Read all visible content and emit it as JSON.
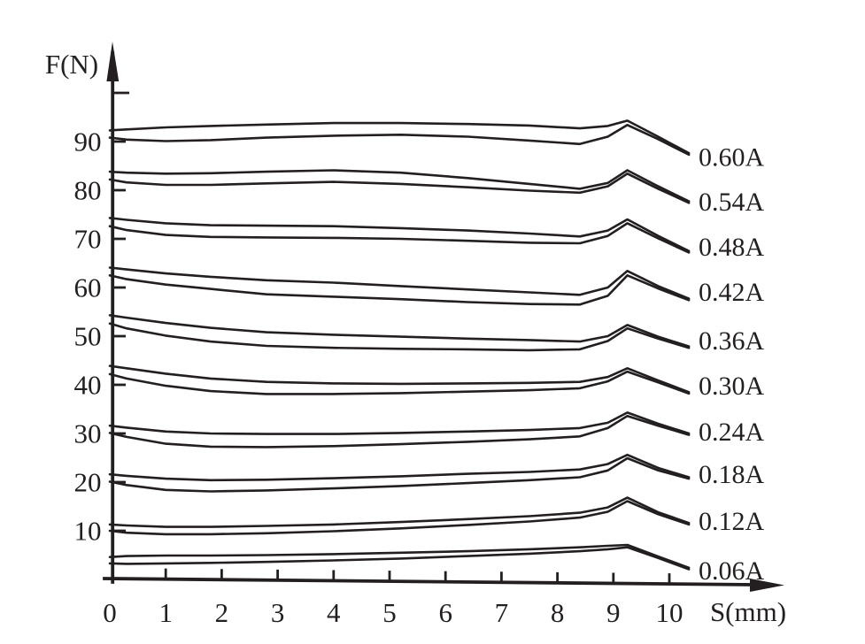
{
  "figure": {
    "background": "#ffffff",
    "ink_color": "#231f20"
  },
  "chart_data": {
    "type": "line",
    "title": "",
    "xlabel": "S(mm)",
    "ylabel": "F(N)",
    "grid": false,
    "xlim": [
      0,
      11.4
    ],
    "ylim": [
      0,
      110
    ],
    "x_tick_labels": [
      0,
      1,
      2,
      3,
      4,
      5,
      6,
      7,
      8,
      9,
      10
    ],
    "y_tick_labels": [
      10,
      20,
      30,
      40,
      50,
      60,
      70,
      80,
      90
    ],
    "y_ticks_unlabeled": [
      100
    ],
    "legend_position": "right-of-curve-tails",
    "x": [
      0,
      0.3,
      1.0,
      1.8,
      2.8,
      4.0,
      5.2,
      6.4,
      7.5,
      8.4,
      8.9,
      9.25,
      9.8,
      10.35
    ],
    "series": [
      {
        "name": "0.60A",
        "label_anchor_F": 86.8,
        "upper": [
          92.3,
          92.5,
          92.9,
          93.2,
          93.5,
          93.8,
          93.8,
          93.6,
          93.3,
          92.7,
          93.2,
          94.3,
          91.0,
          87.6
        ],
        "lower": [
          90.8,
          90.4,
          90.1,
          90.3,
          90.8,
          91.2,
          91.4,
          91.0,
          90.2,
          89.5,
          91.0,
          93.4,
          90.5,
          87.3
        ]
      },
      {
        "name": "0.54A",
        "label_anchor_F": 77.6,
        "upper": [
          83.8,
          83.6,
          83.4,
          83.5,
          83.8,
          84.1,
          83.6,
          82.5,
          81.3,
          80.3,
          81.5,
          84.1,
          80.8,
          77.7
        ],
        "lower": [
          82.2,
          81.6,
          81.1,
          81.1,
          81.4,
          81.7,
          81.3,
          80.6,
          79.9,
          79.5,
          80.8,
          83.4,
          80.3,
          77.4
        ]
      },
      {
        "name": "0.48A",
        "label_anchor_F": 68.4,
        "upper": [
          74.3,
          73.9,
          73.2,
          72.8,
          72.7,
          72.6,
          72.2,
          71.7,
          71.1,
          70.5,
          71.7,
          74.0,
          70.6,
          67.5
        ],
        "lower": [
          72.6,
          71.8,
          70.8,
          70.4,
          70.3,
          70.2,
          70.0,
          69.6,
          69.2,
          69.1,
          70.6,
          73.2,
          70.1,
          67.2
        ]
      },
      {
        "name": "0.42A",
        "label_anchor_F": 59.1,
        "upper": [
          64.1,
          63.7,
          62.9,
          62.2,
          61.5,
          61.0,
          60.3,
          59.6,
          59.0,
          58.5,
          60.0,
          63.4,
          60.3,
          57.7
        ],
        "lower": [
          62.5,
          61.7,
          60.6,
          59.7,
          58.6,
          58.1,
          57.6,
          57.0,
          56.6,
          56.5,
          58.3,
          62.5,
          59.8,
          57.4
        ]
      },
      {
        "name": "0.36A",
        "label_anchor_F": 49.1,
        "upper": [
          54.3,
          53.8,
          52.7,
          51.7,
          50.8,
          50.3,
          49.9,
          49.5,
          49.2,
          48.9,
          50.0,
          52.3,
          49.9,
          47.9
        ],
        "lower": [
          52.6,
          51.6,
          50.1,
          48.9,
          48.0,
          47.6,
          47.4,
          47.3,
          47.1,
          47.3,
          49.0,
          51.6,
          49.5,
          47.6
        ]
      },
      {
        "name": "0.30A",
        "label_anchor_F": 39.8,
        "upper": [
          43.9,
          43.4,
          42.3,
          41.3,
          40.6,
          40.3,
          40.2,
          40.3,
          40.4,
          40.6,
          41.6,
          43.4,
          40.9,
          38.5
        ],
        "lower": [
          42.2,
          41.3,
          39.8,
          38.7,
          38.1,
          38.1,
          38.3,
          38.6,
          38.9,
          39.3,
          40.7,
          42.7,
          40.5,
          38.2
        ]
      },
      {
        "name": "0.24A",
        "label_anchor_F": 30.4,
        "upper": [
          31.6,
          31.2,
          30.4,
          30.0,
          29.9,
          29.9,
          30.1,
          30.4,
          30.7,
          31.1,
          32.2,
          34.3,
          32.0,
          30.0
        ],
        "lower": [
          30.1,
          29.3,
          27.9,
          27.3,
          27.2,
          27.4,
          27.8,
          28.3,
          28.8,
          29.4,
          31.1,
          33.6,
          31.6,
          29.7
        ]
      },
      {
        "name": "0.18A",
        "label_anchor_F": 21.6,
        "upper": [
          21.6,
          21.3,
          20.7,
          20.4,
          20.5,
          20.8,
          21.2,
          21.7,
          22.1,
          22.6,
          23.7,
          25.6,
          22.9,
          21.0
        ],
        "lower": [
          20.1,
          19.4,
          18.4,
          18.1,
          18.3,
          18.7,
          19.2,
          19.8,
          20.4,
          21.0,
          22.4,
          24.9,
          22.4,
          20.7
        ]
      },
      {
        "name": "0.12A",
        "label_anchor_F": 12.0,
        "upper": [
          11.3,
          11.1,
          10.8,
          10.8,
          11.0,
          11.3,
          11.8,
          12.4,
          13.0,
          13.7,
          14.8,
          16.8,
          13.8,
          11.6
        ],
        "lower": [
          10.0,
          9.6,
          9.3,
          9.3,
          9.5,
          9.9,
          10.5,
          11.2,
          11.9,
          12.7,
          13.9,
          16.1,
          13.4,
          11.3
        ]
      },
      {
        "name": "0.06A",
        "label_anchor_F": 1.8,
        "upper": [
          4.6,
          4.8,
          4.9,
          4.9,
          5.0,
          5.2,
          5.5,
          5.8,
          6.2,
          6.6,
          6.9,
          7.1,
          4.7,
          2.4
        ],
        "lower": [
          3.3,
          3.2,
          3.3,
          3.4,
          3.6,
          3.9,
          4.3,
          4.8,
          5.3,
          5.8,
          6.2,
          6.6,
          4.4,
          2.1
        ]
      }
    ]
  }
}
